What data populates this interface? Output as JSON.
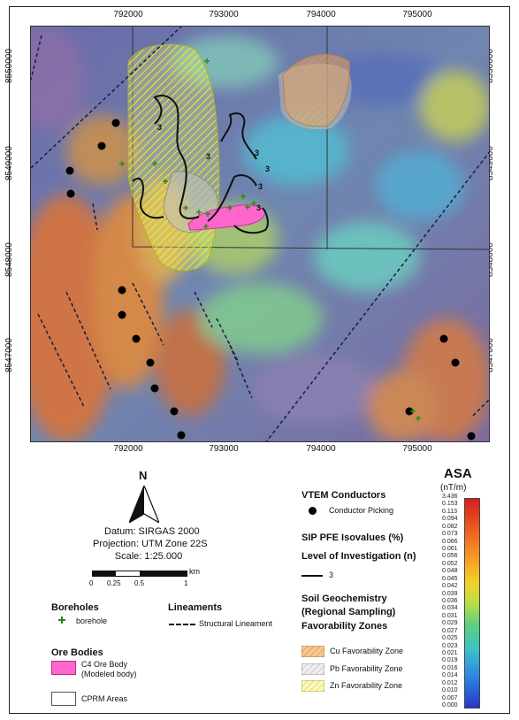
{
  "map": {
    "x_ticks": [
      "792000",
      "793000",
      "794000",
      "795000"
    ],
    "y_ticks": [
      "8550000",
      "8549000",
      "8548000",
      "8547000"
    ],
    "iso_label": "3"
  },
  "north": {
    "label": "N"
  },
  "datum": {
    "line1": "Datum: SIRGAS 2000",
    "line2": "Projection: UTM Zone 22S",
    "line3": "Scale: 1:25.000"
  },
  "scalebar": {
    "unit": "km",
    "ticks": [
      "0",
      "0.25",
      "0.5",
      "1"
    ]
  },
  "boreholes": {
    "title": "Boreholes",
    "item": "borehole"
  },
  "lineaments": {
    "title": "Lineaments",
    "item": "Structural Lineament"
  },
  "ore_bodies": {
    "title": "Ore Bodies",
    "item_line1": "C4 Ore Body",
    "item_line2": "(Modeled body)",
    "cprm": "CPRM Areas"
  },
  "vtem": {
    "title": "VTEM Conductors",
    "item": "Conductor Picking"
  },
  "sip": {
    "title": "SIP PFE Isovalues (%)",
    "subtitle": "Level of Investigation (n)",
    "item": "3"
  },
  "soil": {
    "title_line1": "Soil Geochemistry",
    "title_line2": "(Regional Sampling)",
    "title_line3": "Favorability Zones",
    "cu": "Cu Favorability Zone",
    "pb": "Pb Favorability Zone",
    "zn": "Zn Favorability Zone"
  },
  "colorbar": {
    "title": "ASA",
    "unit": "(nT/m)",
    "labels": [
      "3.436",
      "0.153",
      "0.113",
      "0.094",
      "0.082",
      "0.073",
      "0.066",
      "0.061",
      "0.056",
      "0.052",
      "0.048",
      "0.045",
      "0.042",
      "0.039",
      "0.036",
      "0.034",
      "0.031",
      "0.029",
      "0.027",
      "0.025",
      "0.023",
      "0.021",
      "0.019",
      "0.016",
      "0.014",
      "0.012",
      "0.010",
      "0.007",
      "0.000"
    ]
  },
  "colors": {
    "cu": "#e8a060",
    "pb": "#c8c8c8",
    "zn": "#e8e040",
    "ore": "#ff66cc",
    "borehole": "#33aa22"
  }
}
